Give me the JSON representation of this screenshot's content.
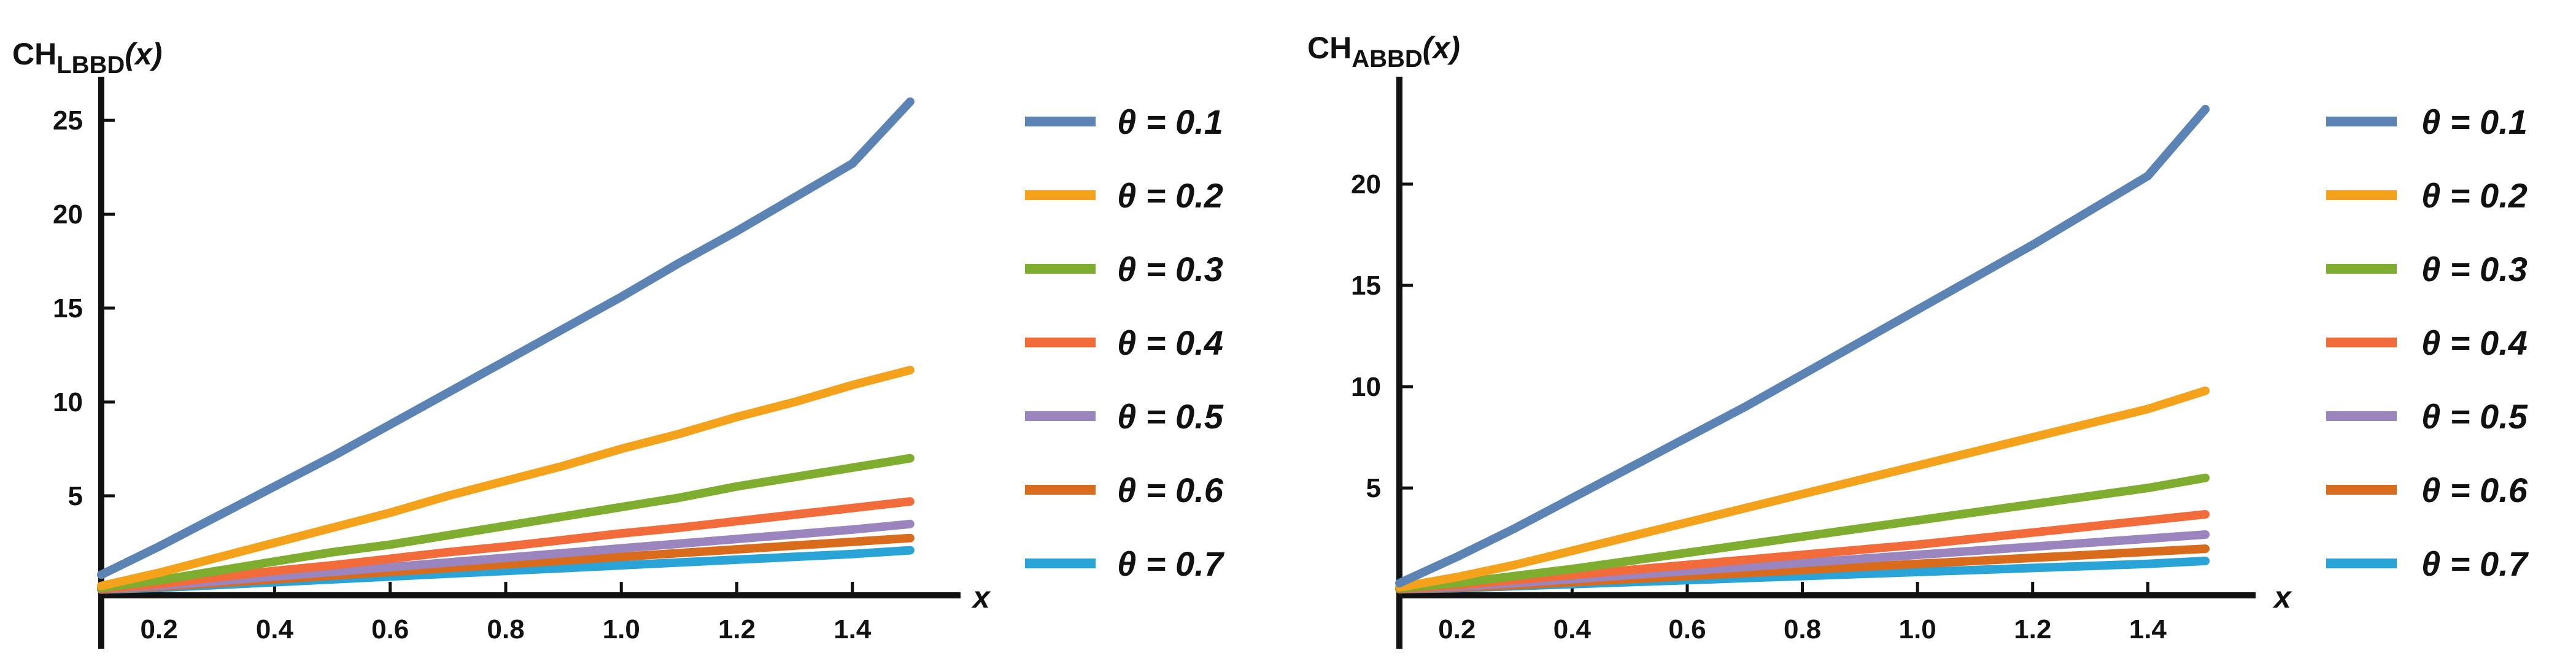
{
  "chart_data": [
    {
      "type": "line",
      "ylabel_main": "CH",
      "ylabel_sub": "LBBD",
      "ylabel_tail": "(x)",
      "xlabel": "x",
      "xlim": [
        0.1,
        1.55
      ],
      "ylim": [
        -0.3,
        27
      ],
      "xticks": [
        0.2,
        0.4,
        0.6,
        0.8,
        1.0,
        1.2,
        1.4
      ],
      "xtick_labels": [
        "0.2",
        "0.4",
        "0.6",
        "0.8",
        "1.0",
        "1.2",
        "1.4"
      ],
      "yticks": [
        5,
        10,
        15,
        20,
        25
      ],
      "ytick_labels": [
        "5",
        "10",
        "15",
        "20",
        "25"
      ],
      "grid": false,
      "legend_position": "right",
      "x": [
        0.1,
        0.2,
        0.3,
        0.4,
        0.5,
        0.6,
        0.7,
        0.8,
        0.9,
        1.0,
        1.1,
        1.2,
        1.3,
        1.4,
        1.5
      ],
      "series": [
        {
          "name": "θ = 0.1",
          "color": "#5b84b5",
          "values": [
            0.8,
            2.3,
            3.9,
            5.5,
            7.1,
            8.8,
            10.5,
            12.2,
            13.9,
            15.6,
            17.4,
            19.1,
            20.9,
            22.7,
            26.0
          ]
        },
        {
          "name": "θ = 0.2",
          "color": "#f4a11c",
          "values": [
            0.2,
            0.9,
            1.7,
            2.5,
            3.3,
            4.1,
            5.0,
            5.8,
            6.6,
            7.5,
            8.3,
            9.2,
            10.0,
            10.9,
            11.7
          ]
        },
        {
          "name": "θ = 0.3",
          "color": "#7fad30",
          "values": [
            0.1,
            0.5,
            1.0,
            1.5,
            2.0,
            2.4,
            2.9,
            3.4,
            3.9,
            4.4,
            4.9,
            5.5,
            6.0,
            6.5,
            7.0
          ]
        },
        {
          "name": "θ = 0.4",
          "color": "#f26b3a",
          "values": [
            0.05,
            0.3,
            0.65,
            1.0,
            1.3,
            1.65,
            2.0,
            2.3,
            2.65,
            3.0,
            3.3,
            3.65,
            4.0,
            4.35,
            4.7
          ]
        },
        {
          "name": "θ = 0.5",
          "color": "#9b85bf",
          "values": [
            0.03,
            0.2,
            0.45,
            0.7,
            0.95,
            1.2,
            1.45,
            1.7,
            1.95,
            2.2,
            2.45,
            2.7,
            2.95,
            3.2,
            3.5
          ]
        },
        {
          "name": "θ = 0.6",
          "color": "#d96c1c",
          "values": [
            0.02,
            0.15,
            0.35,
            0.55,
            0.75,
            0.95,
            1.15,
            1.35,
            1.55,
            1.75,
            1.95,
            2.15,
            2.35,
            2.55,
            2.75
          ]
        },
        {
          "name": "θ = 0.7",
          "color": "#2aa3d6",
          "values": [
            0.01,
            0.1,
            0.25,
            0.4,
            0.55,
            0.7,
            0.85,
            1.0,
            1.15,
            1.3,
            1.45,
            1.6,
            1.75,
            1.9,
            2.1
          ]
        }
      ]
    },
    {
      "type": "line",
      "ylabel_main": "CH",
      "ylabel_sub": "ABBD",
      "ylabel_tail": "(x)",
      "xlabel": "x",
      "xlim": [
        0.1,
        1.55
      ],
      "ylim": [
        -0.3,
        25
      ],
      "xticks": [
        0.2,
        0.4,
        0.6,
        0.8,
        1.0,
        1.2,
        1.4
      ],
      "xtick_labels": [
        "0.2",
        "0.4",
        "0.6",
        "0.8",
        "1.0",
        "1.2",
        "1.4"
      ],
      "yticks": [
        5,
        10,
        15,
        20
      ],
      "ytick_labels": [
        "5",
        "10",
        "15",
        "20"
      ],
      "grid": false,
      "legend_position": "right",
      "x": [
        0.1,
        0.2,
        0.3,
        0.4,
        0.5,
        0.6,
        0.7,
        0.8,
        0.9,
        1.0,
        1.1,
        1.2,
        1.3,
        1.4,
        1.5
      ],
      "series": [
        {
          "name": "θ = 0.1",
          "color": "#5b84b5",
          "values": [
            0.3,
            1.6,
            3.0,
            4.5,
            6.0,
            7.5,
            9.0,
            10.6,
            12.2,
            13.8,
            15.4,
            17.0,
            18.7,
            20.4,
            23.7
          ]
        },
        {
          "name": "θ = 0.2",
          "color": "#f4a11c",
          "values": [
            0.1,
            0.6,
            1.2,
            1.9,
            2.6,
            3.3,
            4.0,
            4.7,
            5.4,
            6.1,
            6.8,
            7.5,
            8.2,
            8.9,
            9.8
          ]
        },
        {
          "name": "θ = 0.3",
          "color": "#7fad30",
          "values": [
            0.05,
            0.3,
            0.65,
            1.0,
            1.4,
            1.8,
            2.2,
            2.6,
            3.0,
            3.4,
            3.8,
            4.2,
            4.6,
            5.0,
            5.5
          ]
        },
        {
          "name": "θ = 0.4",
          "color": "#f26b3a",
          "values": [
            0.03,
            0.2,
            0.45,
            0.7,
            0.95,
            1.2,
            1.45,
            1.7,
            1.95,
            2.2,
            2.5,
            2.8,
            3.1,
            3.4,
            3.7
          ]
        },
        {
          "name": "θ = 0.5",
          "color": "#9b85bf",
          "values": [
            0.02,
            0.12,
            0.3,
            0.5,
            0.7,
            0.9,
            1.1,
            1.3,
            1.5,
            1.7,
            1.9,
            2.1,
            2.3,
            2.5,
            2.7
          ]
        },
        {
          "name": "θ = 0.6",
          "color": "#d96c1c",
          "values": [
            0.01,
            0.08,
            0.2,
            0.35,
            0.5,
            0.65,
            0.8,
            0.95,
            1.1,
            1.25,
            1.4,
            1.55,
            1.7,
            1.85,
            2.0
          ]
        },
        {
          "name": "θ = 0.7",
          "color": "#2aa3d6",
          "values": [
            0.005,
            0.05,
            0.15,
            0.25,
            0.35,
            0.45,
            0.55,
            0.65,
            0.75,
            0.85,
            0.95,
            1.05,
            1.15,
            1.25,
            1.4
          ]
        }
      ]
    }
  ]
}
